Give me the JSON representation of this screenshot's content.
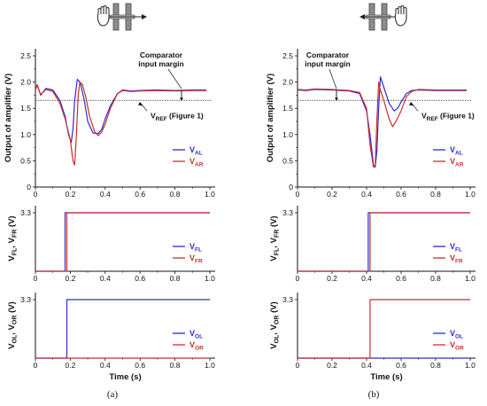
{
  "captions": [
    "(a)",
    "(b)"
  ],
  "colors": {
    "blue": "#2b2bd6",
    "red": "#c8302a",
    "ref": "#6f6f6f",
    "axis": "#111111"
  },
  "icons": [
    {
      "left": "hand-icon",
      "right": "sensor-electrodes-icon",
      "arrow": "right"
    },
    {
      "left": "sensor-electrodes-icon",
      "right": "hand-icon",
      "arrow": "left"
    }
  ],
  "annotations": {
    "margin_line1": "Comparator",
    "margin_line2": "input margin",
    "vref_main": "V",
    "vref_sub": "REF",
    "vref_suffix": " (Figure 1)"
  },
  "chart_data": [
    {
      "type": "line",
      "panel": "a-top",
      "ylabel": "Output of amplifier (V)",
      "xlim": [
        0,
        1.0
      ],
      "ylim": [
        0,
        2.5
      ],
      "xticks": [
        "0",
        "0.2",
        "0.4",
        "0.6",
        "0.8",
        "1.0"
      ],
      "yticks": [
        "0",
        "0.5",
        "1.0",
        "1.5",
        "2.0",
        "2.5"
      ],
      "series": [
        {
          "name": "V",
          "sub": "AL",
          "color": "#2b2bd6",
          "x": [
            0,
            0.01,
            0.03,
            0.06,
            0.1,
            0.14,
            0.17,
            0.19,
            0.205,
            0.215,
            0.225,
            0.24,
            0.25,
            0.26,
            0.28,
            0.3,
            0.33,
            0.36,
            0.38,
            0.4,
            0.43,
            0.47,
            0.5,
            0.55,
            0.6,
            0.7,
            0.8,
            0.9,
            0.98
          ],
          "y": [
            1.85,
            1.95,
            1.75,
            1.88,
            1.85,
            1.65,
            1.35,
            1.0,
            0.85,
            1.1,
            1.65,
            2.05,
            2.02,
            1.95,
            1.65,
            1.25,
            1.03,
            1.02,
            1.1,
            1.3,
            1.55,
            1.78,
            1.85,
            1.83,
            1.84,
            1.85,
            1.84,
            1.85,
            1.85
          ]
        },
        {
          "name": "V",
          "sub": "AR",
          "color": "#c8302a",
          "x": [
            0,
            0.01,
            0.03,
            0.06,
            0.1,
            0.14,
            0.17,
            0.2,
            0.215,
            0.225,
            0.235,
            0.245,
            0.255,
            0.27,
            0.29,
            0.31,
            0.34,
            0.36,
            0.38,
            0.4,
            0.43,
            0.47,
            0.5,
            0.55,
            0.6,
            0.7,
            0.8,
            0.9,
            0.98
          ],
          "y": [
            1.85,
            1.95,
            1.76,
            1.86,
            1.82,
            1.6,
            1.3,
            0.9,
            0.5,
            0.42,
            1.0,
            1.75,
            2.0,
            1.95,
            1.7,
            1.35,
            1.05,
            0.98,
            1.05,
            1.2,
            1.5,
            1.78,
            1.84,
            1.82,
            1.83,
            1.84,
            1.83,
            1.84,
            1.84
          ]
        }
      ],
      "vref": 1.65
    },
    {
      "type": "line",
      "panel": "a-mid",
      "ylabel": "V",
      "ylabel_subs": [
        "FL",
        "FR"
      ],
      "xlim": [
        0,
        1.0
      ],
      "ylim": [
        0,
        3.3
      ],
      "xticks": [
        "0",
        "0.2",
        "0.4",
        "0.6",
        "0.8",
        "1.0"
      ],
      "yticks": [
        "3.3"
      ],
      "series": [
        {
          "name": "V",
          "sub": "FL",
          "color": "#2b2bd6",
          "x": [
            0,
            0.17,
            0.17,
            1.0
          ],
          "y": [
            0,
            0,
            3.3,
            3.3
          ]
        },
        {
          "name": "V",
          "sub": "FR",
          "color": "#c8302a",
          "x": [
            0,
            0.18,
            0.18,
            1.0
          ],
          "y": [
            0,
            0,
            3.3,
            3.3
          ]
        }
      ]
    },
    {
      "type": "line",
      "panel": "a-bot",
      "ylabel": "V",
      "ylabel_subs": [
        "OL",
        "OR"
      ],
      "xlabel": "Time  (s)",
      "xlim": [
        0,
        1.0
      ],
      "ylim": [
        0,
        3.3
      ],
      "xticks": [
        "0",
        "0.2",
        "0.4",
        "0.6",
        "0.8",
        "1.0"
      ],
      "yticks": [
        "3.3"
      ],
      "series": [
        {
          "name": "V",
          "sub": "OL",
          "color": "#2b2bd6",
          "x": [
            0,
            0.18,
            0.18,
            1.0
          ],
          "y": [
            0,
            0,
            3.3,
            3.3
          ]
        },
        {
          "name": "V",
          "sub": "OR",
          "color": "#c8302a",
          "x": [
            0,
            1.0
          ],
          "y": [
            0,
            0
          ]
        }
      ]
    },
    {
      "type": "line",
      "panel": "b-top",
      "ylabel": "Output of amplifier (V)",
      "xlim": [
        0,
        1.0
      ],
      "ylim": [
        0,
        2.5
      ],
      "xticks": [
        "0",
        "0.2",
        "0.4",
        "0.6",
        "0.8",
        "1.0"
      ],
      "yticks": [
        "0",
        "0.5",
        "1.0",
        "1.5",
        "2.0",
        "2.5"
      ],
      "series": [
        {
          "name": "V",
          "sub": "AL",
          "color": "#2b2bd6",
          "x": [
            0,
            0.05,
            0.1,
            0.2,
            0.3,
            0.36,
            0.4,
            0.42,
            0.44,
            0.45,
            0.46,
            0.47,
            0.48,
            0.5,
            0.53,
            0.56,
            0.58,
            0.6,
            0.63,
            0.66,
            0.7,
            0.8,
            0.9,
            0.98
          ],
          "y": [
            1.85,
            1.84,
            1.86,
            1.85,
            1.83,
            1.78,
            1.45,
            1.0,
            0.42,
            0.38,
            0.7,
            1.5,
            2.1,
            1.9,
            1.6,
            1.45,
            1.5,
            1.62,
            1.78,
            1.84,
            1.85,
            1.84,
            1.84,
            1.84
          ]
        },
        {
          "name": "V",
          "sub": "AR",
          "color": "#c8302a",
          "x": [
            0,
            0.05,
            0.1,
            0.2,
            0.3,
            0.36,
            0.4,
            0.42,
            0.44,
            0.45,
            0.46,
            0.47,
            0.48,
            0.5,
            0.53,
            0.55,
            0.57,
            0.6,
            0.63,
            0.66,
            0.7,
            0.8,
            0.9,
            0.98
          ],
          "y": [
            1.86,
            1.85,
            1.87,
            1.86,
            1.84,
            1.8,
            1.5,
            0.8,
            0.38,
            0.4,
            1.3,
            2.0,
            1.85,
            1.65,
            1.3,
            1.15,
            1.25,
            1.45,
            1.72,
            1.82,
            1.86,
            1.85,
            1.85,
            1.85
          ]
        }
      ],
      "vref": 1.65
    },
    {
      "type": "line",
      "panel": "b-mid",
      "ylabel": "V",
      "ylabel_subs": [
        "FL",
        "FR"
      ],
      "xlim": [
        0,
        1.0
      ],
      "ylim": [
        0,
        3.3
      ],
      "xticks": [
        "0",
        "0.2",
        "0.4",
        "0.6",
        "0.8",
        "1.0"
      ],
      "yticks": [
        "3.3"
      ],
      "series": [
        {
          "name": "V",
          "sub": "FL",
          "color": "#2b2bd6",
          "x": [
            0,
            0.41,
            0.41,
            1.0
          ],
          "y": [
            0,
            0,
            3.3,
            3.3
          ]
        },
        {
          "name": "V",
          "sub": "FR",
          "color": "#c8302a",
          "x": [
            0,
            0.42,
            0.42,
            1.0
          ],
          "y": [
            0,
            0,
            3.3,
            3.3
          ]
        }
      ]
    },
    {
      "type": "line",
      "panel": "b-bot",
      "ylabel": "V",
      "ylabel_subs": [
        "OL",
        "OR"
      ],
      "xlabel": "Time  (s)",
      "xlim": [
        0,
        1.0
      ],
      "ylim": [
        0,
        3.3
      ],
      "xticks": [
        "0",
        "0.2",
        "0.4",
        "0.6",
        "0.8",
        "1.0"
      ],
      "yticks": [
        "3.3"
      ],
      "series": [
        {
          "name": "V",
          "sub": "OL",
          "color": "#2b2bd6",
          "x": [
            0,
            1.0
          ],
          "y": [
            0,
            0
          ]
        },
        {
          "name": "V",
          "sub": "OR",
          "color": "#c8302a",
          "x": [
            0,
            0.42,
            0.42,
            1.0
          ],
          "y": [
            0,
            0,
            3.3,
            3.3
          ]
        }
      ]
    }
  ]
}
